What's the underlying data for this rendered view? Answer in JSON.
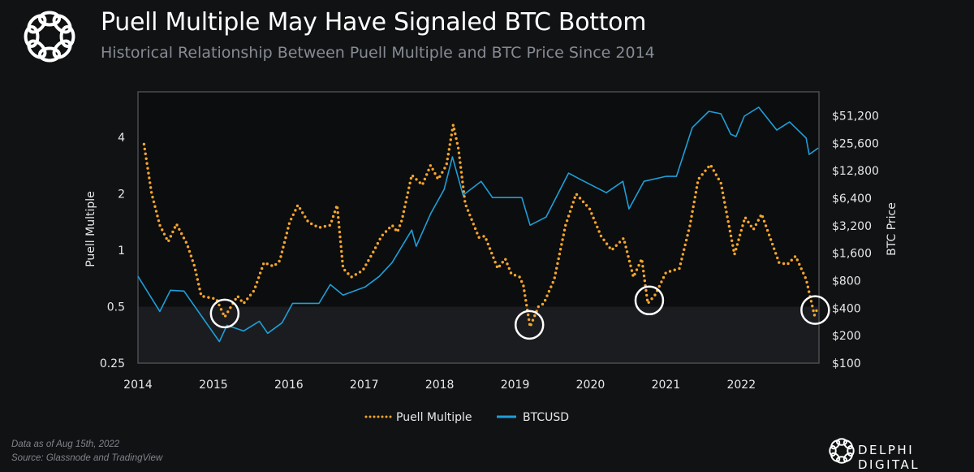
{
  "header": {
    "title": "Puell Multiple May Have Signaled BTC Bottom",
    "subtitle": "Historical Relationship Between Puell Multiple and BTC Price Since 2014"
  },
  "footer": {
    "note": "Data as of Aug 15th, 2022",
    "source": "Source: Glassnode and TradingView",
    "brand": "DELPHI DIGITAL"
  },
  "colors": {
    "puell": "#f5a52c",
    "btc": "#1e9fd8",
    "background": "#111214",
    "shaded_zone": "#1b1c1f"
  },
  "chart_data": {
    "type": "line",
    "xlabel": "",
    "x_ticks": [
      "2014",
      "2015",
      "2016",
      "2017",
      "2018",
      "2019",
      "2020",
      "2021",
      "2022"
    ],
    "xlim": [
      2014,
      2023.03
    ],
    "y_left": {
      "label": "Puell Multiple",
      "scale": "log2",
      "ticks": [
        "0.25",
        "0.5",
        "1",
        "2",
        "4"
      ],
      "tick_values": [
        0.25,
        0.5,
        1,
        2,
        4
      ],
      "lim": [
        0.25,
        7.0
      ]
    },
    "y_right": {
      "label": "BTC Price",
      "scale": "log2",
      "ticks": [
        "$100",
        "$200",
        "$400",
        "$800",
        "$1,600",
        "$3,200",
        "$6,400",
        "$12,800",
        "$25,600",
        "$51,200"
      ],
      "tick_values": [
        100,
        200,
        400,
        800,
        1600,
        3200,
        6400,
        12800,
        25600,
        51200
      ],
      "lim": [
        100,
        93600
      ]
    },
    "shaded_band": {
      "axis": "left",
      "from": 0.25,
      "to": 0.5
    },
    "legend": {
      "position": "bottom",
      "entries": [
        "Puell Multiple",
        "BTCUSD"
      ]
    },
    "grid": false,
    "series": [
      {
        "name": "Puell Multiple",
        "axis": "left",
        "style": "dotted",
        "x": [
          2014.08,
          2014.18,
          2014.29,
          2014.4,
          2014.51,
          2014.65,
          2014.75,
          2014.84,
          2015.04,
          2015.15,
          2015.32,
          2015.4,
          2015.54,
          2015.67,
          2015.8,
          2015.88,
          2016.01,
          2016.12,
          2016.26,
          2016.4,
          2016.55,
          2016.64,
          2016.72,
          2016.83,
          2016.98,
          2017.12,
          2017.23,
          2017.37,
          2017.44,
          2017.5,
          2017.63,
          2017.77,
          2017.88,
          2017.98,
          2018.09,
          2018.18,
          2018.25,
          2018.34,
          2018.52,
          2018.6,
          2018.77,
          2018.87,
          2018.95,
          2019.06,
          2019.11,
          2019.2,
          2019.31,
          2019.38,
          2019.52,
          2019.67,
          2019.81,
          2019.99,
          2020.14,
          2020.28,
          2020.44,
          2020.57,
          2020.68,
          2020.76,
          2020.86,
          2021.0,
          2021.18,
          2021.32,
          2021.43,
          2021.59,
          2021.73,
          2021.91,
          2022.05,
          2022.16,
          2022.27,
          2022.5,
          2022.61,
          2022.72,
          2022.86,
          2022.97,
          2023.02
        ],
        "y": [
          3.68,
          2.02,
          1.36,
          1.11,
          1.38,
          1.08,
          0.82,
          0.57,
          0.55,
          0.44,
          0.57,
          0.52,
          0.61,
          0.86,
          0.82,
          0.88,
          1.41,
          1.74,
          1.41,
          1.32,
          1.36,
          1.74,
          0.8,
          0.72,
          0.78,
          0.98,
          1.19,
          1.36,
          1.25,
          1.45,
          2.52,
          2.23,
          2.84,
          2.39,
          2.84,
          4.67,
          3.46,
          1.77,
          1.17,
          1.19,
          0.8,
          0.9,
          0.75,
          0.72,
          0.65,
          0.39,
          0.5,
          0.52,
          0.7,
          1.36,
          2.0,
          1.66,
          1.19,
          1.0,
          1.16,
          0.72,
          0.9,
          0.52,
          0.58,
          0.76,
          0.8,
          1.36,
          2.39,
          2.86,
          2.28,
          0.95,
          1.5,
          1.29,
          1.56,
          0.86,
          0.84,
          0.93,
          0.7,
          0.45,
          0.5
        ]
      },
      {
        "name": "BTCUSD",
        "axis": "right",
        "style": "solid",
        "x": [
          2014.0,
          2014.29,
          2014.43,
          2014.61,
          2015.08,
          2015.18,
          2015.4,
          2015.61,
          2015.72,
          2015.91,
          2016.05,
          2016.4,
          2016.55,
          2016.72,
          2017.01,
          2017.2,
          2017.37,
          2017.63,
          2017.69,
          2017.88,
          2018.06,
          2018.17,
          2018.31,
          2018.55,
          2018.7,
          2019.09,
          2019.2,
          2019.41,
          2019.71,
          2019.85,
          2020.21,
          2020.43,
          2020.51,
          2020.71,
          2021.0,
          2021.14,
          2021.35,
          2021.57,
          2021.73,
          2021.86,
          2021.93,
          2022.04,
          2022.23,
          2022.47,
          2022.64,
          2022.75,
          2022.86,
          2022.9,
          2023.02
        ],
        "y": [
          891,
          368,
          628,
          615,
          172,
          260,
          225,
          288,
          212,
          277,
          452,
          452,
          725,
          555,
          681,
          891,
          1262,
          2865,
          1901,
          4317,
          7988,
          18150,
          6917,
          9802,
          6506,
          6506,
          3240,
          3978,
          12035,
          10431,
          7358,
          9802,
          4881,
          9802,
          11093,
          11093,
          37950,
          57200,
          53800,
          32200,
          30300,
          50600,
          63400,
          35700,
          43800,
          35700,
          29100,
          19300,
          22700
        ]
      }
    ],
    "annotations": [
      {
        "type": "circle",
        "axis": "left",
        "x": 2015.15,
        "y": 0.46
      },
      {
        "type": "circle",
        "axis": "left",
        "x": 2019.19,
        "y": 0.4
      },
      {
        "type": "circle",
        "axis": "left",
        "x": 2020.78,
        "y": 0.54
      },
      {
        "type": "circle",
        "axis": "left",
        "x": 2022.98,
        "y": 0.48
      }
    ]
  }
}
